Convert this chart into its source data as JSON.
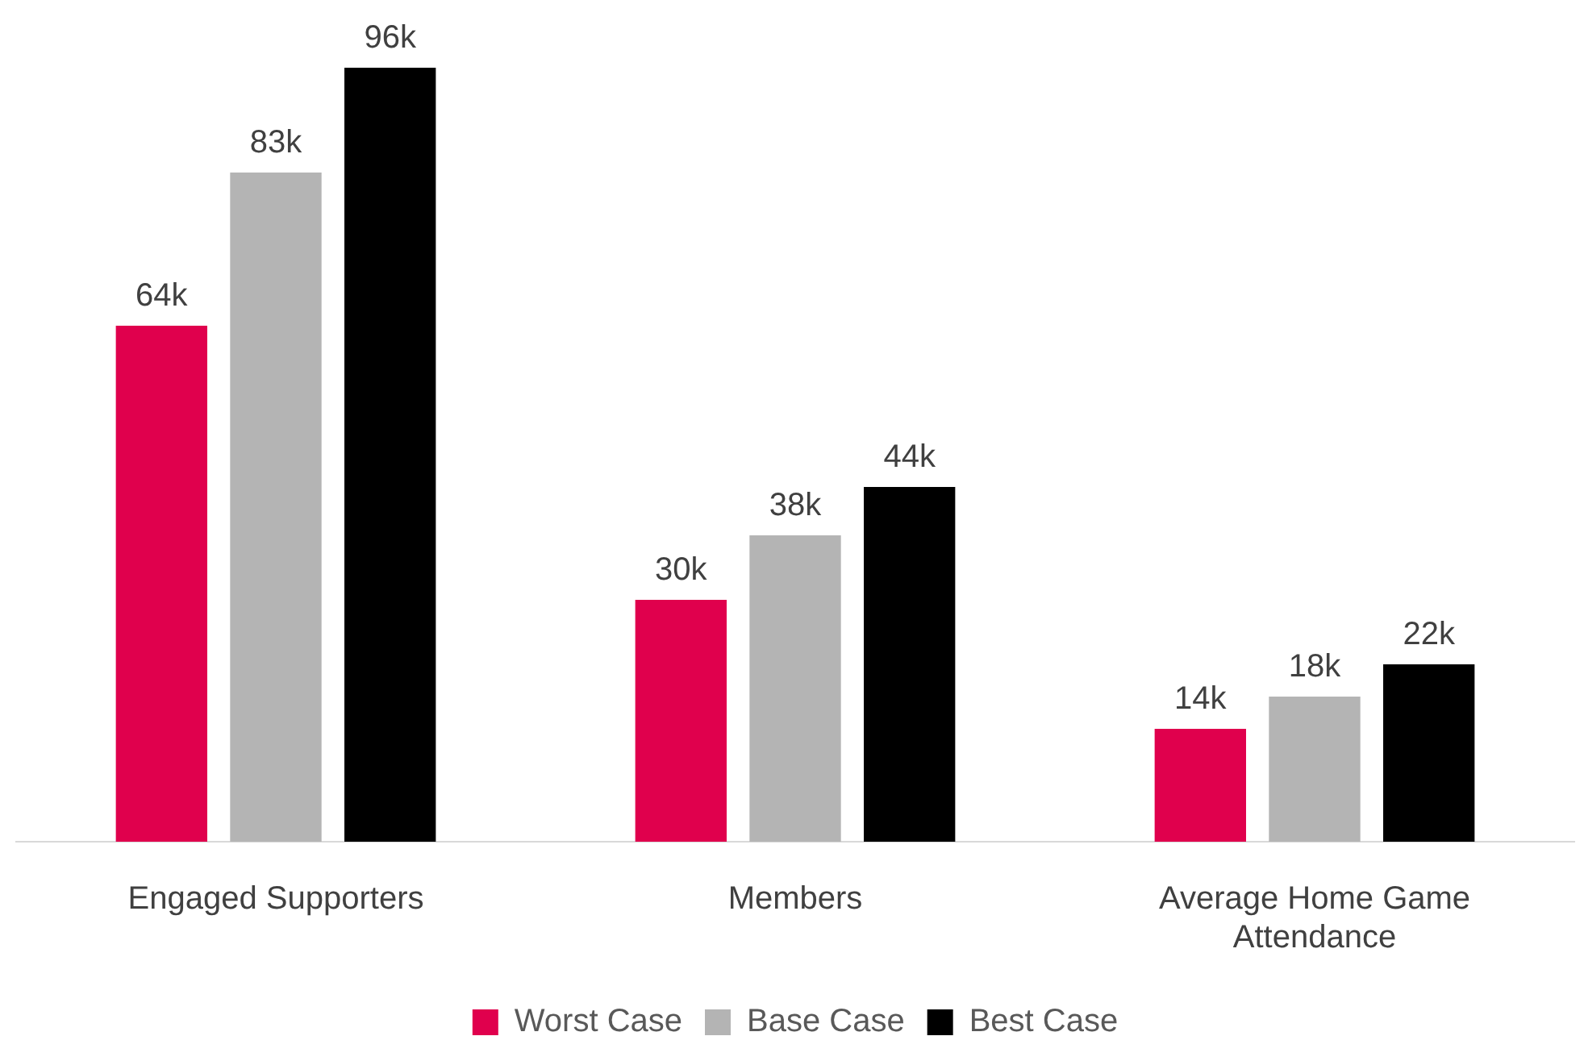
{
  "chart_data": {
    "type": "bar",
    "categories": [
      "Engaged Supporters",
      "Members",
      "Average Home Game Attendance"
    ],
    "series": [
      {
        "name": "Worst Case",
        "color": "#e0004d",
        "values": [
          64,
          30,
          14
        ],
        "value_labels": [
          "64k",
          "30k",
          "14k"
        ]
      },
      {
        "name": "Base Case",
        "color": "#b4b4b4",
        "values": [
          83,
          38,
          18
        ],
        "value_labels": [
          "83k",
          "38k",
          "18k"
        ]
      },
      {
        "name": "Best Case",
        "color": "#000000",
        "values": [
          96,
          44,
          22
        ],
        "value_labels": [
          "96k",
          "44k",
          "22k"
        ]
      }
    ],
    "ylim": [
      0,
      96
    ],
    "tick_labels": "x",
    "grid": false,
    "legend": "bottom"
  }
}
